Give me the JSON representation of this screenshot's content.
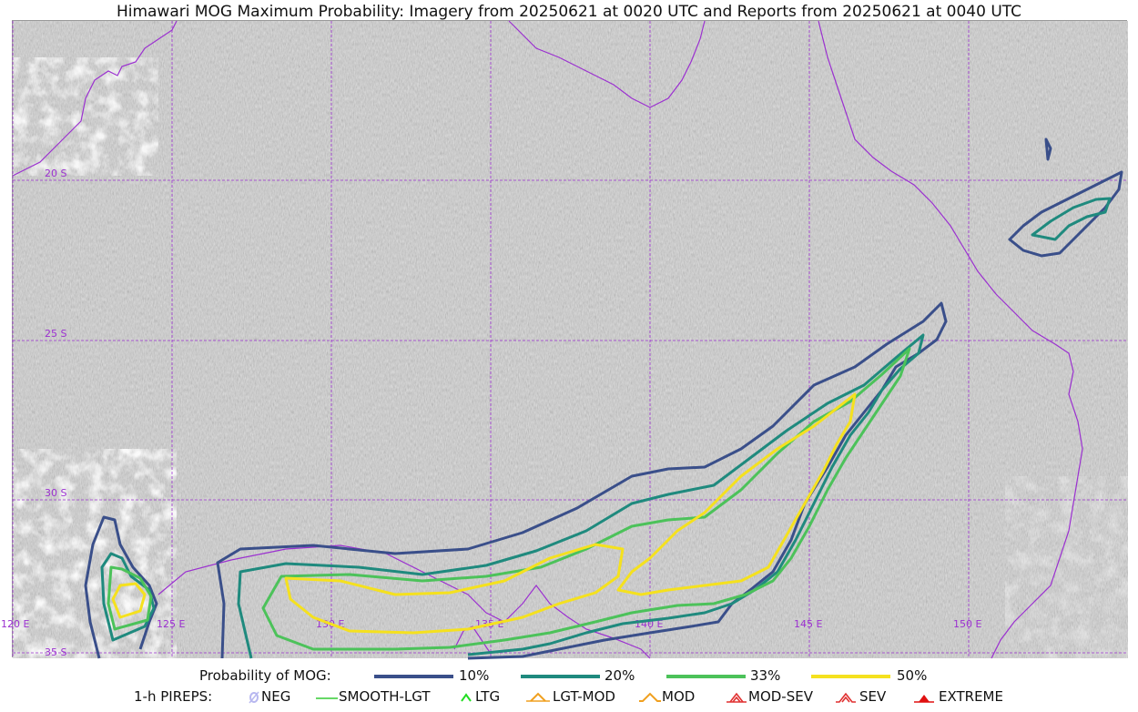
{
  "title": "Himawari MOG Maximum Probability: Imagery from 20250621 at 0020 UTC and Reports from 20250621 at 0040 UTC",
  "map": {
    "latitude_labels": [
      "20 S",
      "25 S",
      "30 S",
      "35 S"
    ],
    "longitude_labels": [
      "120 E",
      "125 E",
      "130 E",
      "135 E",
      "140 E",
      "145 E",
      "150 E"
    ],
    "gridline_color": "#9b30d0",
    "coastline_color": "#9b30d0"
  },
  "legend": {
    "probability_label": "Probability of MOG:",
    "probability_levels": [
      {
        "label": "10%",
        "color": "#3a4f8a"
      },
      {
        "label": "20%",
        "color": "#1f8a7e"
      },
      {
        "label": "33%",
        "color": "#4cc25a"
      },
      {
        "label": "50%",
        "color": "#f5e11e"
      }
    ],
    "pireps_label": "1-h PIREPS:",
    "pireps": [
      {
        "label": "NEG",
        "icon": "neg-icon",
        "color": "#b8b8f0"
      },
      {
        "label": "SMOOTH-LGT",
        "icon": "smooth-lgt-icon",
        "color": "#33cc33"
      },
      {
        "label": "LTG",
        "icon": "ltg-icon",
        "color": "#22dd22"
      },
      {
        "label": "LGT-MOD",
        "icon": "lgt-mod-icon",
        "color": "#f0a020"
      },
      {
        "label": "MOD",
        "icon": "mod-icon",
        "color": "#f0a020"
      },
      {
        "label": "MOD-SEV",
        "icon": "mod-sev-icon",
        "color": "#e03030"
      },
      {
        "label": "SEV",
        "icon": "sev-icon",
        "color": "#e03030"
      },
      {
        "label": "EXTREME",
        "icon": "extreme-icon",
        "color": "#e01010"
      }
    ]
  }
}
